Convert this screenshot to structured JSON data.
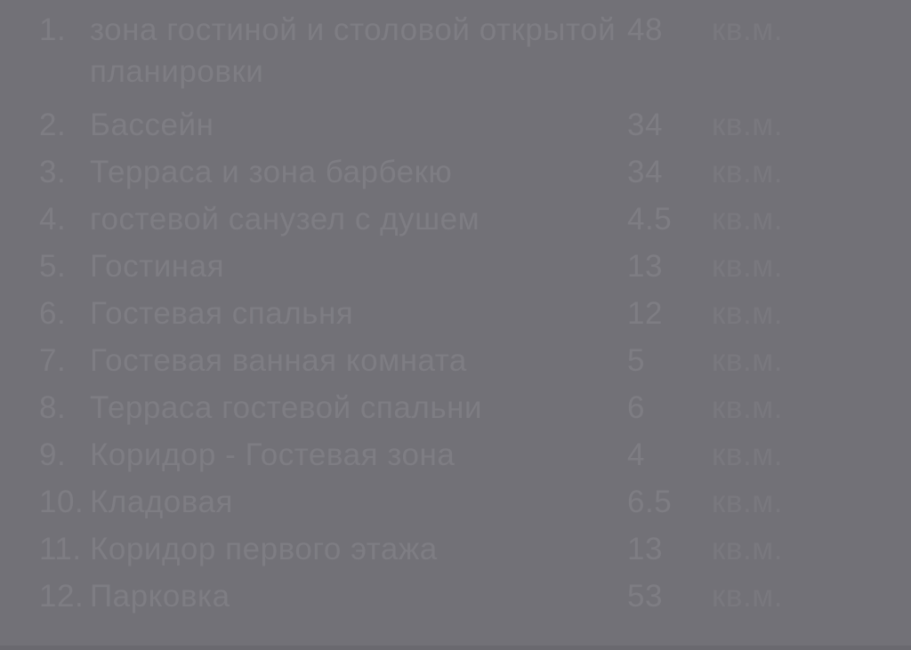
{
  "page": {
    "background_color": "#727177",
    "text_color": "#7e7d83",
    "unit_color": "#79787e",
    "bottom_strip_color": "#6a696f"
  },
  "room_list": {
    "items": [
      {
        "num": "1.",
        "name": "зона гостиной и столовой открытой планировки",
        "area": "48",
        "unit": "кв.м."
      },
      {
        "num": "2.",
        "name": "Бассейн",
        "area": "34",
        "unit": "кв.м."
      },
      {
        "num": "3.",
        "name": "Терраса и зона барбекю",
        "area": "34",
        "unit": "кв.м."
      },
      {
        "num": "4.",
        "name": "гостевой санузел с душем",
        "area": "4.5",
        "unit": "кв.м."
      },
      {
        "num": "5.",
        "name": "Гостиная",
        "area": "13",
        "unit": "кв.м."
      },
      {
        "num": "6.",
        "name": "Гостевая спальня",
        "area": "12",
        "unit": "кв.м."
      },
      {
        "num": "7.",
        "name": "Гостевая ванная комната",
        "area": "5",
        "unit": "кв.м."
      },
      {
        "num": "8.",
        "name": "Терраса гостевой спальни",
        "area": "6",
        "unit": "кв.м."
      },
      {
        "num": "9.",
        "name": "Коридор - Гостевая зона",
        "area": "4",
        "unit": "кв.м."
      },
      {
        "num": "10.",
        "name": "Кладовая",
        "area": "6.5",
        "unit": "кв.м."
      },
      {
        "num": "11.",
        "name": "Коридор первого этажа",
        "area": "13",
        "unit": "кв.м."
      },
      {
        "num": "12.",
        "name": "Парковка",
        "area": "53",
        "unit": "кв.м."
      }
    ]
  }
}
